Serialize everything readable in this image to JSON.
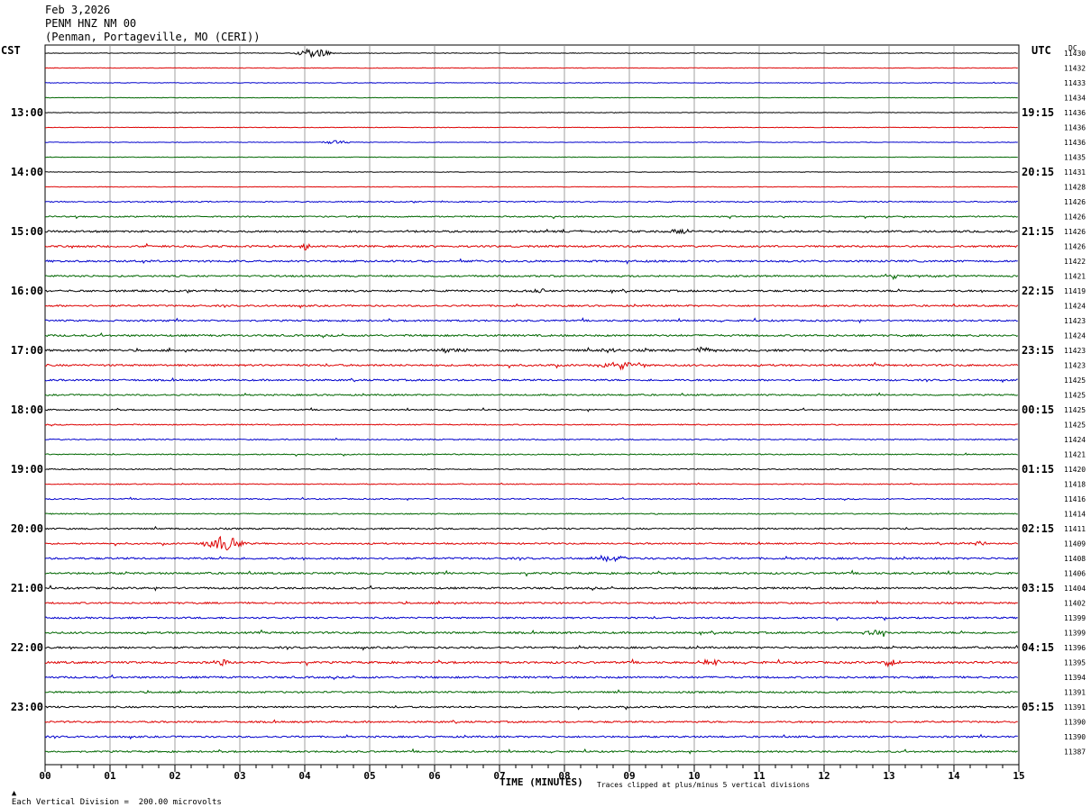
{
  "header": {
    "date": "Feb 3,2026",
    "station": "PENM HNZ NM 00",
    "location": "(Penman, Portageville, MO (CERI))"
  },
  "left_axis_label": "CST",
  "right_axis_label": "UTC",
  "dc_label": "DC",
  "footer": {
    "scale_note": "Each Vertical Division =  200.00 microvolts",
    "xlabel": "TIME (MINUTES)",
    "clip_note": "Traces clipped at plus/minus 5 vertical divisions"
  },
  "colors": {
    "trace_cycle": [
      "#000000",
      "#dd0000",
      "#0000cc",
      "#006600"
    ],
    "grid": "#888888"
  },
  "chart_data": {
    "type": "line",
    "x_ticks": [
      "00",
      "01",
      "02",
      "03",
      "04",
      "05",
      "06",
      "07",
      "08",
      "09",
      "10",
      "11",
      "12",
      "13",
      "14",
      "15"
    ],
    "xlim": [
      0,
      15
    ],
    "cst_hour_labels": [
      "13:00",
      "14:00",
      "15:00",
      "16:00",
      "17:00",
      "18:00",
      "19:00",
      "20:00",
      "21:00",
      "22:00",
      "23:00"
    ],
    "utc_hour_labels": [
      "19:15",
      "20:15",
      "21:15",
      "22:15",
      "23:15",
      "00:15",
      "01:15",
      "02:15",
      "03:15",
      "04:15",
      "05:15"
    ],
    "hour_label_first_trace": 4,
    "traces_per_hour": 4,
    "dc_offsets": [
      11430,
      11432,
      11433,
      11434,
      11436,
      11436,
      11436,
      11435,
      11431,
      11428,
      11426,
      11426,
      11426,
      11426,
      11422,
      11421,
      11419,
      11424,
      11423,
      11424,
      11423,
      11423,
      11425,
      11425,
      11425,
      11425,
      11424,
      11421,
      11420,
      11418,
      11416,
      11414,
      11411,
      11409,
      11408,
      11406,
      11404,
      11402,
      11399,
      11399,
      11396,
      11395,
      11394,
      11391,
      11391,
      11390,
      11390,
      11387
    ],
    "noise_level": [
      0.3,
      0.3,
      0.3,
      0.3,
      0.3,
      0.3,
      0.3,
      0.3,
      0.3,
      0.3,
      0.6,
      0.7,
      1.0,
      1.0,
      1.0,
      0.9,
      1.0,
      0.9,
      0.9,
      1.0,
      1.1,
      1.0,
      0.9,
      0.8,
      0.7,
      0.6,
      0.6,
      0.6,
      0.6,
      0.5,
      0.6,
      0.6,
      0.8,
      0.8,
      1.0,
      1.0,
      1.0,
      0.9,
      0.9,
      1.0,
      1.0,
      1.1,
      1.0,
      0.9,
      0.9,
      0.9,
      0.9,
      0.9
    ],
    "events": [
      {
        "trace": 0,
        "minute": 4.15,
        "amplitude": 6,
        "duration": 0.35
      },
      {
        "trace": 6,
        "minute": 4.5,
        "amplitude": 2.5,
        "duration": 0.3
      },
      {
        "trace": 12,
        "minute": 9.8,
        "amplitude": 3,
        "duration": 0.4
      },
      {
        "trace": 13,
        "minute": 4.0,
        "amplitude": 4,
        "duration": 0.1
      },
      {
        "trace": 15,
        "minute": 13.05,
        "amplitude": 3,
        "duration": 0.2
      },
      {
        "trace": 16,
        "minute": 7.6,
        "amplitude": 3,
        "duration": 0.2
      },
      {
        "trace": 20,
        "minute": 6.3,
        "amplitude": 3,
        "duration": 0.3
      },
      {
        "trace": 20,
        "minute": 8.7,
        "amplitude": 3,
        "duration": 0.3
      },
      {
        "trace": 20,
        "minute": 10.1,
        "amplitude": 3,
        "duration": 0.3
      },
      {
        "trace": 21,
        "minute": 8.9,
        "amplitude": 4,
        "duration": 0.5
      },
      {
        "trace": 33,
        "minute": 2.75,
        "amplitude": 9,
        "duration": 0.4
      },
      {
        "trace": 33,
        "minute": 14.4,
        "amplitude": 2.5,
        "duration": 0.3
      },
      {
        "trace": 34,
        "minute": 8.7,
        "amplitude": 3,
        "duration": 0.4
      },
      {
        "trace": 41,
        "minute": 2.75,
        "amplitude": 4,
        "duration": 0.2
      },
      {
        "trace": 41,
        "minute": 10.3,
        "amplitude": 3,
        "duration": 0.4
      },
      {
        "trace": 41,
        "minute": 13.0,
        "amplitude": 4,
        "duration": 0.2
      },
      {
        "trace": 39,
        "minute": 12.8,
        "amplitude": 2.5,
        "duration": 0.4
      }
    ]
  }
}
